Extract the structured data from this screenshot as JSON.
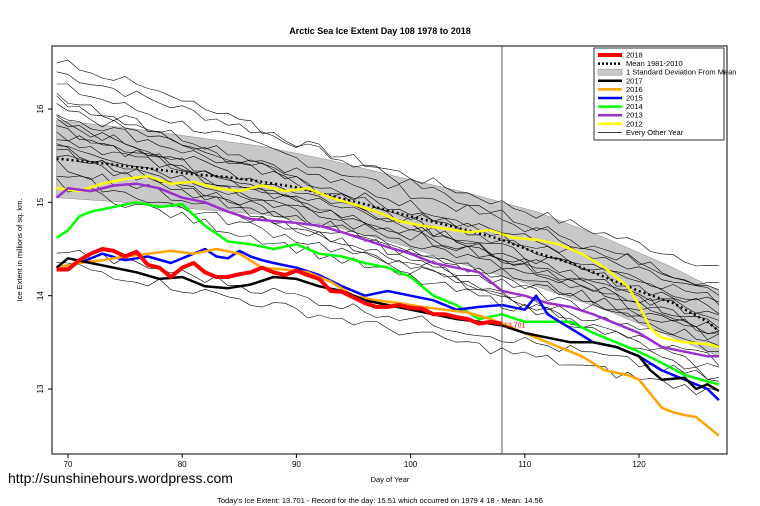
{
  "chart_data": {
    "type": "line",
    "title": "Arctic Sea Ice Extent Day 108 1978 to 2018",
    "xlabel": "Day of Year",
    "ylabel": "Ice Extent in millions of sq. km.",
    "xlim": [
      68.8,
      127.4
    ],
    "ylim": [
      12.4,
      16.65
    ],
    "xticks": [
      70,
      80,
      90,
      100,
      110,
      120
    ],
    "yticks": [
      13,
      14,
      15,
      16
    ],
    "grid": false,
    "legend_position": "top-right",
    "marker_day": 108,
    "annotation": {
      "text": "13.701",
      "x": 108,
      "y": 13.701,
      "color": "#ff0000"
    },
    "mean_1981_2010": {
      "x": [
        69,
        72,
        75,
        78,
        81,
        84,
        87,
        90,
        93,
        96,
        99,
        102,
        105,
        108,
        111,
        114,
        117,
        120,
        123,
        126,
        127
      ],
      "y": [
        15.47,
        15.43,
        15.39,
        15.35,
        15.3,
        15.27,
        15.22,
        15.16,
        15.07,
        14.98,
        14.88,
        14.79,
        14.7,
        14.6,
        14.46,
        14.35,
        14.2,
        14.05,
        13.92,
        13.72,
        13.62
      ]
    },
    "std_band": {
      "x": [
        69,
        75,
        81,
        87,
        93,
        99,
        105,
        111,
        117,
        123,
        127
      ],
      "upper": [
        15.88,
        15.8,
        15.7,
        15.6,
        15.45,
        15.27,
        15.1,
        14.9,
        14.62,
        14.3,
        14.05
      ],
      "lower": [
        15.05,
        15.0,
        14.93,
        14.87,
        14.75,
        14.55,
        14.32,
        14.1,
        13.85,
        13.55,
        13.35
      ]
    },
    "series": [
      {
        "name": "2018",
        "color": "#ff0000",
        "width": 4,
        "x": [
          69,
          70,
          71,
          72,
          73,
          74,
          75,
          76,
          77,
          78,
          79,
          80,
          81,
          82,
          83,
          84,
          85,
          86,
          87,
          88,
          89,
          90,
          91,
          92,
          93,
          94,
          95,
          96,
          97,
          98,
          99,
          100,
          101,
          102,
          103,
          104,
          105,
          106,
          107,
          108
        ],
        "y": [
          14.28,
          14.28,
          14.38,
          14.45,
          14.5,
          14.48,
          14.42,
          14.47,
          14.33,
          14.3,
          14.2,
          14.3,
          14.35,
          14.25,
          14.2,
          14.2,
          14.23,
          14.25,
          14.3,
          14.25,
          14.22,
          14.27,
          14.22,
          14.18,
          14.05,
          14.04,
          13.98,
          13.92,
          13.88,
          13.88,
          13.9,
          13.87,
          13.86,
          13.8,
          13.8,
          13.77,
          13.75,
          13.7,
          13.72,
          13.701
        ]
      },
      {
        "name": "2017",
        "color": "#000000",
        "width": 2.5,
        "x": [
          69,
          70,
          72,
          74,
          76,
          78,
          80,
          82,
          84,
          86,
          88,
          90,
          92,
          94,
          96,
          98,
          100,
          102,
          104,
          106,
          108,
          110,
          112,
          114,
          116,
          118,
          120,
          121,
          122,
          124,
          125,
          126,
          127
        ],
        "y": [
          14.3,
          14.4,
          14.35,
          14.3,
          14.25,
          14.18,
          14.2,
          14.1,
          14.08,
          14.12,
          14.2,
          14.18,
          14.1,
          14.05,
          13.95,
          13.9,
          13.85,
          13.8,
          13.75,
          13.72,
          13.68,
          13.6,
          13.55,
          13.5,
          13.5,
          13.45,
          13.35,
          13.2,
          13.1,
          13.12,
          13.0,
          13.05,
          12.98
        ]
      },
      {
        "name": "2016",
        "color": "#ffa500",
        "width": 2.5,
        "x": [
          69,
          71,
          73,
          75,
          77,
          79,
          81,
          83,
          85,
          87,
          89,
          91,
          93,
          95,
          97,
          99,
          101,
          103,
          105,
          107,
          109,
          111,
          113,
          115,
          117,
          119,
          120,
          121,
          122,
          123,
          124,
          125,
          126,
          127
        ],
        "y": [
          14.3,
          14.35,
          14.38,
          14.42,
          14.45,
          14.48,
          14.45,
          14.5,
          14.45,
          14.3,
          14.28,
          14.25,
          14.15,
          14.0,
          13.95,
          13.92,
          13.88,
          13.85,
          13.82,
          13.75,
          13.65,
          13.55,
          13.45,
          13.35,
          13.2,
          13.15,
          13.1,
          12.95,
          12.8,
          12.75,
          12.72,
          12.7,
          12.6,
          12.5
        ]
      },
      {
        "name": "2015",
        "color": "#0000ff",
        "width": 2.5,
        "x": [
          69,
          71,
          73,
          75,
          77,
          79,
          81,
          82,
          83,
          84,
          85,
          86,
          87,
          88,
          90,
          92,
          94,
          96,
          98,
          100,
          102,
          104,
          106,
          108,
          110,
          111,
          112,
          114,
          116,
          118,
          120,
          122,
          124,
          126,
          127
        ],
        "y": [
          14.3,
          14.35,
          14.45,
          14.38,
          14.42,
          14.35,
          14.45,
          14.5,
          14.42,
          14.4,
          14.48,
          14.42,
          14.38,
          14.35,
          14.3,
          14.22,
          14.1,
          14.0,
          14.05,
          14.0,
          13.95,
          13.85,
          13.88,
          13.9,
          13.85,
          14.0,
          13.8,
          13.65,
          13.5,
          13.45,
          13.35,
          13.2,
          13.1,
          13.0,
          12.88
        ]
      },
      {
        "name": "2014",
        "color": "#00ff00",
        "width": 2.5,
        "x": [
          69,
          70,
          71,
          72,
          74,
          76,
          78,
          80,
          82,
          84,
          86,
          88,
          90,
          92,
          94,
          96,
          98,
          100,
          101,
          102,
          104,
          106,
          108,
          110,
          112,
          114,
          116,
          118,
          120,
          122,
          124,
          126,
          127
        ],
        "y": [
          14.62,
          14.7,
          14.85,
          14.9,
          14.95,
          15.0,
          14.95,
          14.98,
          14.75,
          14.58,
          14.55,
          14.5,
          14.55,
          14.45,
          14.42,
          14.35,
          14.3,
          14.2,
          14.1,
          14.0,
          13.9,
          13.75,
          13.8,
          13.72,
          13.72,
          13.72,
          13.6,
          13.5,
          13.4,
          13.28,
          13.15,
          13.08,
          13.05
        ]
      },
      {
        "name": "2013",
        "color": "#9932cc",
        "width": 2.5,
        "x": [
          69,
          70,
          72,
          74,
          76,
          78,
          80,
          82,
          84,
          86,
          88,
          90,
          92,
          94,
          96,
          98,
          100,
          102,
          104,
          106,
          108,
          110,
          112,
          114,
          116,
          118,
          120,
          122,
          124,
          126,
          127
        ],
        "y": [
          15.05,
          15.15,
          15.12,
          15.18,
          15.2,
          15.15,
          15.05,
          15.0,
          14.9,
          14.82,
          14.8,
          14.78,
          14.75,
          14.68,
          14.6,
          14.52,
          14.45,
          14.35,
          14.3,
          14.25,
          14.05,
          14.0,
          13.92,
          13.88,
          13.8,
          13.7,
          13.6,
          13.45,
          13.4,
          13.35,
          13.35
        ]
      },
      {
        "name": "2012",
        "color": "#ffff00",
        "width": 2.5,
        "x": [
          69,
          71,
          73,
          75,
          77,
          79,
          81,
          83,
          85,
          87,
          89,
          91,
          93,
          95,
          97,
          99,
          101,
          103,
          105,
          107,
          109,
          111,
          113,
          115,
          117,
          119,
          120,
          121,
          122,
          124,
          126,
          127
        ],
        "y": [
          15.15,
          15.12,
          15.2,
          15.25,
          15.28,
          15.2,
          15.22,
          15.15,
          15.12,
          15.18,
          15.12,
          15.15,
          15.05,
          14.98,
          14.9,
          14.8,
          14.75,
          14.72,
          14.68,
          14.7,
          14.62,
          14.6,
          14.55,
          14.45,
          14.3,
          14.1,
          13.9,
          13.65,
          13.55,
          13.5,
          13.48,
          13.45
        ]
      }
    ],
    "other_years": [
      {
        "start": 16.4,
        "end": 14.3
      },
      {
        "start": 16.25,
        "end": 14.1
      },
      {
        "start": 16.1,
        "end": 14.0
      },
      {
        "start": 16.0,
        "end": 13.95
      },
      {
        "start": 15.95,
        "end": 13.9
      },
      {
        "start": 15.85,
        "end": 13.85
      },
      {
        "start": 15.8,
        "end": 13.8
      },
      {
        "start": 15.75,
        "end": 13.7
      },
      {
        "start": 15.7,
        "end": 13.75
      },
      {
        "start": 15.65,
        "end": 13.65
      },
      {
        "start": 15.55,
        "end": 13.6
      },
      {
        "start": 15.5,
        "end": 13.55
      },
      {
        "start": 15.4,
        "end": 13.5
      },
      {
        "start": 15.3,
        "end": 13.4
      },
      {
        "start": 15.2,
        "end": 13.3
      },
      {
        "start": 15.6,
        "end": 13.2
      },
      {
        "start": 14.5,
        "end": 13.1
      },
      {
        "start": 14.35,
        "end": 12.95
      },
      {
        "start": 16.55,
        "end": 14.05
      },
      {
        "start": 16.15,
        "end": 13.6
      },
      {
        "start": 15.9,
        "end": 13.1
      }
    ],
    "legend": [
      {
        "label": "2018",
        "color": "#ff0000",
        "style": "line-thick"
      },
      {
        "label": "Mean 1981-2010",
        "color": "#000000",
        "style": "dotted"
      },
      {
        "label": "1 Standard Deviation From Mean",
        "color": "#cccccc",
        "style": "band"
      },
      {
        "label": "2017",
        "color": "#000000",
        "style": "line"
      },
      {
        "label": "2016",
        "color": "#ffa500",
        "style": "line"
      },
      {
        "label": "2015",
        "color": "#0000ff",
        "style": "line"
      },
      {
        "label": "2014",
        "color": "#00ff00",
        "style": "line"
      },
      {
        "label": "2013",
        "color": "#9932cc",
        "style": "line"
      },
      {
        "label": "2012",
        "color": "#ffff00",
        "style": "line"
      },
      {
        "label": "Every Other Year",
        "color": "#000000",
        "style": "line-thin"
      }
    ]
  },
  "watermark": "http://sunshinehours.wordpress.com",
  "footer": "Today's Ice Extent: 13.701  - Record for the day: 15.51 which occurred on 1979 4 18  - Mean: 14.56"
}
